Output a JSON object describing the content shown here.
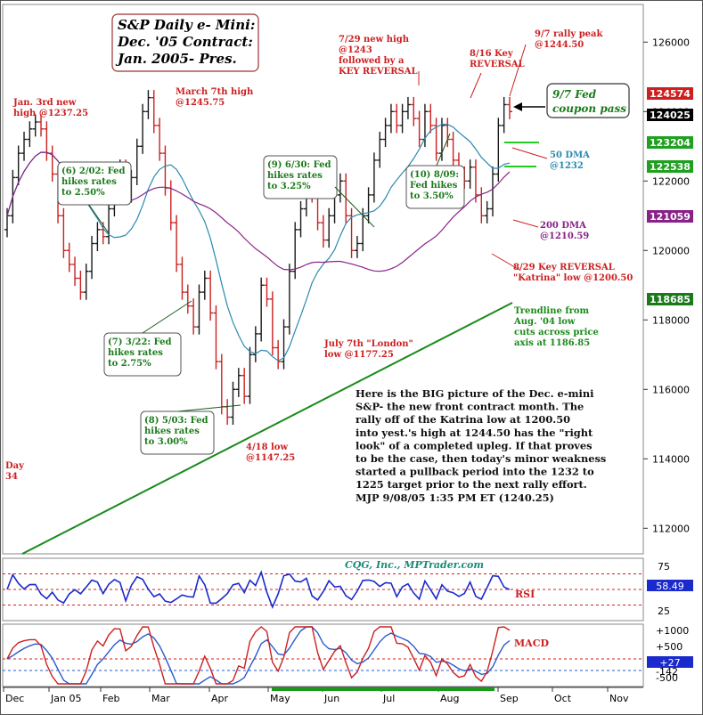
{
  "chart_data": {
    "type": "candlestick",
    "title_lines": [
      "S&P Daily e- Mini:",
      "Dec. '05 Contract:",
      "Jan. 2005- Pres."
    ],
    "source": "CQG, Inc., MPTrader.com",
    "x_months": [
      "Dec",
      "Jan 05",
      "Feb",
      "Mar",
      "Apr",
      "May",
      "Jun",
      "Jul",
      "Aug",
      "Sep",
      "Oct",
      "Nov"
    ],
    "price_axis": {
      "ylim": [
        110900,
        127600
      ],
      "ticks": [
        112000,
        114000,
        116000,
        118000,
        120000,
        122000,
        124000,
        126000
      ]
    },
    "price_boxes": [
      {
        "value": "124574",
        "bg": "#cc2020"
      },
      {
        "value": "124025",
        "bg": "#000000"
      },
      {
        "value": "123204",
        "bg": "#20a020"
      },
      {
        "value": "122538",
        "bg": "#20a020"
      },
      {
        "value": "121059",
        "bg": "#882288"
      },
      {
        "value": "118685",
        "bg": "#1a7a1a"
      }
    ],
    "key_points": [
      {
        "date": "Jan. 3rd",
        "value": 1237.25
      },
      {
        "date": "March 7th",
        "value": 1245.75
      },
      {
        "date": "4/18",
        "value": 1147.25
      },
      {
        "date": "July 7th",
        "value": 1177.25
      },
      {
        "date": "7/29",
        "value": 1243
      },
      {
        "date": "8/29",
        "value": 1200.5
      },
      {
        "date": "9/7",
        "value": 1244.5
      }
    ],
    "price_path": [
      [
        0,
        1210
      ],
      [
        1,
        1221
      ],
      [
        2,
        1228
      ],
      [
        3,
        1232
      ],
      [
        4,
        1235
      ],
      [
        5,
        1237
      ],
      [
        6,
        1235
      ],
      [
        7,
        1228
      ],
      [
        8,
        1222
      ],
      [
        9,
        1210
      ],
      [
        10,
        1200
      ],
      [
        11,
        1196
      ],
      [
        12,
        1192
      ],
      [
        13,
        1188
      ],
      [
        14,
        1194
      ],
      [
        15,
        1202
      ],
      [
        16,
        1206
      ],
      [
        17,
        1204
      ],
      [
        18,
        1212
      ],
      [
        19,
        1219
      ],
      [
        20,
        1224
      ],
      [
        21,
        1216
      ],
      [
        22,
        1221
      ],
      [
        23,
        1230
      ],
      [
        24,
        1240
      ],
      [
        25,
        1244
      ],
      [
        26,
        1236
      ],
      [
        27,
        1228
      ],
      [
        28,
        1218
      ],
      [
        29,
        1208
      ],
      [
        30,
        1196
      ],
      [
        31,
        1188
      ],
      [
        32,
        1184
      ],
      [
        33,
        1178
      ],
      [
        34,
        1188
      ],
      [
        35,
        1192
      ],
      [
        36,
        1182
      ],
      [
        37,
        1168
      ],
      [
        38,
        1155
      ],
      [
        39,
        1152
      ],
      [
        40,
        1160
      ],
      [
        41,
        1164
      ],
      [
        42,
        1158
      ],
      [
        43,
        1170
      ],
      [
        44,
        1176
      ],
      [
        45,
        1190
      ],
      [
        46,
        1186
      ],
      [
        47,
        1172
      ],
      [
        48,
        1168
      ],
      [
        49,
        1178
      ],
      [
        50,
        1194
      ],
      [
        51,
        1206
      ],
      [
        52,
        1212
      ],
      [
        53,
        1220
      ],
      [
        54,
        1216
      ],
      [
        55,
        1208
      ],
      [
        56,
        1203
      ],
      [
        57,
        1210
      ],
      [
        58,
        1216
      ],
      [
        59,
        1220
      ],
      [
        60,
        1210
      ],
      [
        61,
        1200
      ],
      [
        62,
        1202
      ],
      [
        63,
        1210
      ],
      [
        64,
        1216
      ],
      [
        65,
        1226
      ],
      [
        66,
        1232
      ],
      [
        67,
        1236
      ],
      [
        68,
        1240
      ],
      [
        69,
        1236
      ],
      [
        70,
        1240
      ],
      [
        71,
        1242
      ],
      [
        72,
        1238
      ],
      [
        73,
        1232
      ],
      [
        74,
        1240
      ],
      [
        75,
        1236
      ],
      [
        76,
        1228
      ],
      [
        77,
        1236
      ],
      [
        78,
        1232
      ],
      [
        79,
        1226
      ],
      [
        80,
        1222
      ],
      [
        81,
        1220
      ],
      [
        82,
        1224
      ],
      [
        83,
        1216
      ],
      [
        84,
        1210
      ],
      [
        85,
        1212
      ],
      [
        86,
        1222
      ],
      [
        87,
        1236
      ],
      [
        88,
        1242
      ],
      [
        89,
        1240
      ]
    ],
    "series": [
      {
        "name": "50 DMA",
        "value": 1232,
        "color": "#2a8ab0"
      },
      {
        "name": "200 DMA",
        "value": 1210.59,
        "color": "#882288"
      },
      {
        "name": "Trendline from Aug. '04 low",
        "value": 1186.85,
        "color": "#1a8a1a"
      }
    ],
    "rsi": {
      "name": "RSI",
      "ticks": [
        "75",
        "50",
        "25"
      ],
      "value_box": "58.49"
    },
    "macd": {
      "name": "MACD",
      "ticks": [
        "+1000",
        "+500",
        "+27",
        "-142",
        "-500"
      ],
      "value_box": "+27"
    },
    "annotations": [
      {
        "lines": [
          "Jan. 3rd new",
          "high @1237.25"
        ],
        "color": "#cc2020"
      },
      {
        "lines": [
          "March 7th high",
          "@1245.75"
        ],
        "color": "#cc2020"
      },
      {
        "lines": [
          "7/29 new high",
          "@1243",
          "followed by a",
          "KEY REVERSAL"
        ],
        "color": "#cc2020"
      },
      {
        "lines": [
          "8/16 Key",
          "REVERSAL"
        ],
        "color": "#cc2020"
      },
      {
        "lines": [
          "9/7 rally peak",
          "@1244.50"
        ],
        "color": "#cc2020"
      },
      {
        "lines": [
          "50 DMA",
          "@1232"
        ],
        "color": "#2a8ab0"
      },
      {
        "lines": [
          "200 DMA",
          "@1210.59"
        ],
        "color": "#882288"
      },
      {
        "lines": [
          "8/29 Key REVERSAL",
          "\"Katrina\" low @1200.50"
        ],
        "color": "#cc2020"
      },
      {
        "lines": [
          "Trendline from",
          "Aug. '04 low",
          "cuts across price",
          "axis at 1186.85"
        ],
        "color": "#1a8a1a"
      },
      {
        "lines": [
          "July 7th \"London\"",
          "low @1177.25"
        ],
        "color": "#cc2020"
      },
      {
        "lines": [
          "4/18 low",
          "@1147.25"
        ],
        "color": "#cc2020"
      },
      {
        "lines": [
          "Day",
          "34"
        ],
        "color": "#cc2020"
      }
    ],
    "fed_boxes": [
      {
        "lines": [
          "(6) 2/02: Fed",
          "hikes rates",
          "to 2.50%"
        ]
      },
      {
        "lines": [
          "(7) 3/22: Fed",
          "hikes rates",
          "to 2.75%"
        ]
      },
      {
        "lines": [
          "(8) 5/03: Fed",
          "hikes rates",
          "to 3.00%"
        ]
      },
      {
        "lines": [
          "(9) 6/30: Fed",
          "hikes rates",
          "to 3.25%"
        ]
      },
      {
        "lines": [
          "(10) 8/09:",
          "Fed hikes",
          "to 3.50%"
        ]
      }
    ],
    "callout": {
      "lines": [
        "9/7 Fed",
        "coupon pass"
      ]
    },
    "commentary": [
      "Here is the BIG picture of the Dec. e-mini",
      "S&P- the new front contract month. The",
      "rally off of the Katrina low at 1200.50",
      "into yest.'s high at 1244.50 has the \"right",
      "look\" of a completed upleg. If that proves",
      "to be the case, then today's minor weakness",
      "started a pullback period into the 1232 to",
      "1225 target prior to the next rally effort.",
      "MJP 9/08/05 1:35 PM ET (1240.25)"
    ],
    "colors": {
      "up": "#1a1a1a",
      "down": "#cc2020",
      "fed": "#1a7a1a",
      "ann": "#cc2020",
      "dma50": "#2a8ab0",
      "dma200": "#882288",
      "trend": "#1a8a1a",
      "rsi": "#1a2acc",
      "macd": "#cc2020",
      "signal": "#2a5acc",
      "panel_border": "#888888"
    }
  }
}
